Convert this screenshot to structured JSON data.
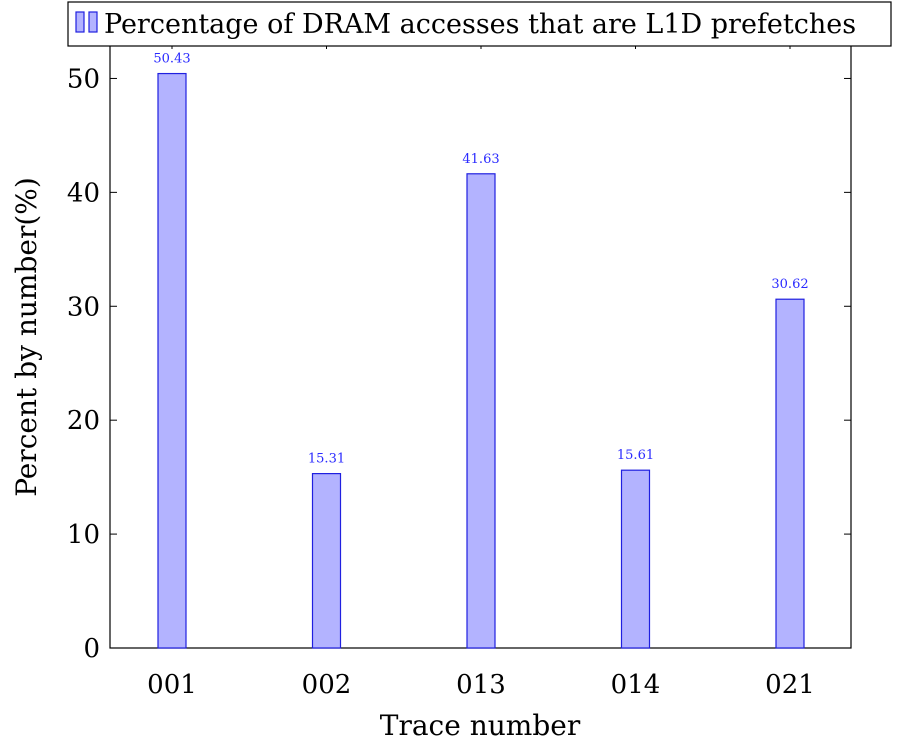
{
  "chart_data": {
    "type": "bar",
    "categories": [
      "001",
      "002",
      "013",
      "014",
      "021"
    ],
    "series": [
      {
        "name": "Percentage of DRAM accesses that are L1D prefetches",
        "values": [
          50.43,
          15.31,
          41.63,
          15.61,
          30.62
        ],
        "value_labels": [
          "50.43",
          "15.31",
          "41.63",
          "15.61",
          "30.62"
        ]
      }
    ],
    "xlabel": "Trace number",
    "ylabel": "Percent by number(%)",
    "ylim": [
      0,
      53.2
    ],
    "yticks": [
      0,
      10,
      20,
      30,
      40,
      50
    ],
    "ytick_labels": [
      "0",
      "10",
      "20",
      "30",
      "40",
      "50"
    ],
    "legend_position": "top-center",
    "grid": false
  },
  "colors": {
    "bar_fill": "#b3b3ff",
    "bar_stroke": "#2020e0",
    "data_label": "#2a2aff",
    "axis": "#000000"
  }
}
